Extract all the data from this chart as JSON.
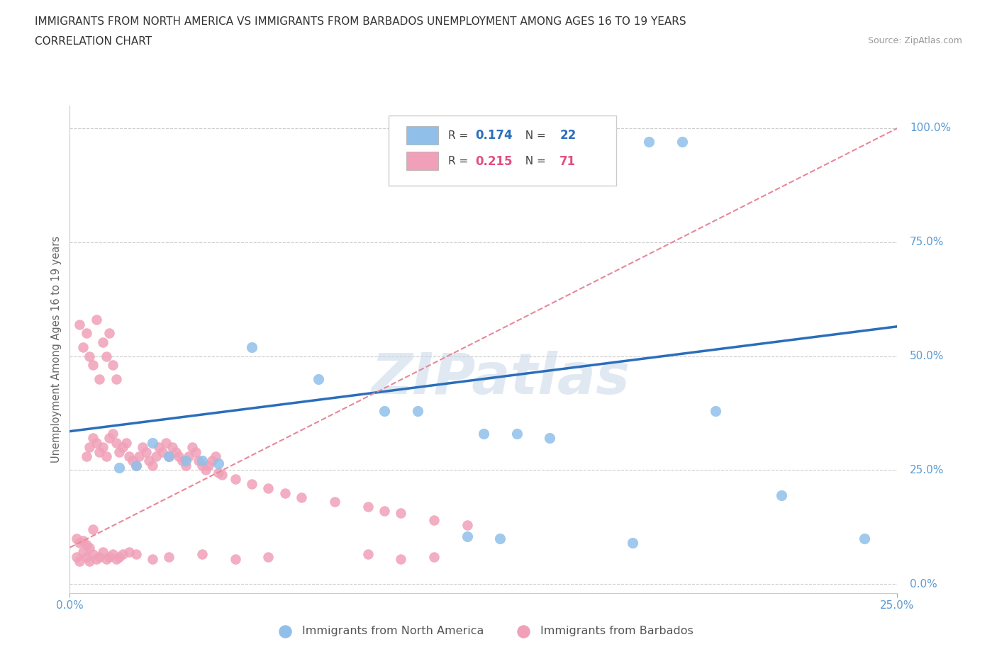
{
  "title_line1": "IMMIGRANTS FROM NORTH AMERICA VS IMMIGRANTS FROM BARBADOS UNEMPLOYMENT AMONG AGES 16 TO 19 YEARS",
  "title_line2": "CORRELATION CHART",
  "source": "Source: ZipAtlas.com",
  "ylabel": "Unemployment Among Ages 16 to 19 years",
  "watermark": "ZIPatlas",
  "blue_R": 0.174,
  "blue_N": 22,
  "pink_R": 0.215,
  "pink_N": 71,
  "blue_color": "#90c0ea",
  "pink_color": "#f0a0b8",
  "blue_line_color": "#2a6ebb",
  "pink_line_color": "#e88898",
  "axis_label_color": "#5b9bd5",
  "xlim": [
    0.0,
    0.25
  ],
  "ylim": [
    -0.02,
    1.05
  ],
  "ytick_vals": [
    0.0,
    0.25,
    0.5,
    0.75,
    1.0
  ],
  "ytick_labels": [
    "0.0%",
    "25.0%",
    "50.0%",
    "75.0%",
    "100.0%"
  ],
  "xtick_vals": [
    0.0,
    0.25
  ],
  "xtick_labels": [
    "0.0%",
    "25.0%"
  ],
  "blue_scatter_x": [
    0.175,
    0.185,
    0.055,
    0.075,
    0.095,
    0.105,
    0.125,
    0.135,
    0.145,
    0.195,
    0.215,
    0.025,
    0.03,
    0.035,
    0.04,
    0.045,
    0.015,
    0.02,
    0.12,
    0.13,
    0.24,
    0.17
  ],
  "blue_scatter_y": [
    0.97,
    0.97,
    0.52,
    0.45,
    0.38,
    0.38,
    0.33,
    0.33,
    0.32,
    0.38,
    0.195,
    0.31,
    0.28,
    0.27,
    0.27,
    0.265,
    0.255,
    0.26,
    0.105,
    0.1,
    0.1,
    0.09
  ],
  "pink_scatter_x": [
    0.005,
    0.006,
    0.007,
    0.008,
    0.009,
    0.01,
    0.011,
    0.012,
    0.013,
    0.014,
    0.015,
    0.016,
    0.017,
    0.018,
    0.019,
    0.02,
    0.021,
    0.022,
    0.023,
    0.024,
    0.025,
    0.026,
    0.027,
    0.028,
    0.029,
    0.03,
    0.031,
    0.032,
    0.033,
    0.034,
    0.035,
    0.036,
    0.037,
    0.038,
    0.039,
    0.04,
    0.041,
    0.042,
    0.043,
    0.044,
    0.003,
    0.004,
    0.005,
    0.006,
    0.007,
    0.008,
    0.009,
    0.01,
    0.011,
    0.012,
    0.013,
    0.014,
    0.045,
    0.046,
    0.05,
    0.055,
    0.06,
    0.065,
    0.07,
    0.08,
    0.09,
    0.095,
    0.1,
    0.11,
    0.12,
    0.002,
    0.003,
    0.004,
    0.005,
    0.006,
    0.007
  ],
  "pink_scatter_y": [
    0.28,
    0.3,
    0.32,
    0.31,
    0.29,
    0.3,
    0.28,
    0.32,
    0.33,
    0.31,
    0.29,
    0.3,
    0.31,
    0.28,
    0.27,
    0.26,
    0.28,
    0.3,
    0.29,
    0.27,
    0.26,
    0.28,
    0.3,
    0.29,
    0.31,
    0.28,
    0.3,
    0.29,
    0.28,
    0.27,
    0.26,
    0.28,
    0.3,
    0.29,
    0.27,
    0.26,
    0.25,
    0.26,
    0.27,
    0.28,
    0.57,
    0.52,
    0.55,
    0.5,
    0.48,
    0.58,
    0.45,
    0.53,
    0.5,
    0.55,
    0.48,
    0.45,
    0.245,
    0.24,
    0.23,
    0.22,
    0.21,
    0.2,
    0.19,
    0.18,
    0.17,
    0.16,
    0.155,
    0.14,
    0.13,
    0.1,
    0.09,
    0.095,
    0.085,
    0.08,
    0.12
  ],
  "pink_low_scatter_x": [
    0.002,
    0.003,
    0.004,
    0.005,
    0.006,
    0.007,
    0.008,
    0.009,
    0.01,
    0.011,
    0.012,
    0.013,
    0.014,
    0.015,
    0.016,
    0.018,
    0.02,
    0.025,
    0.03,
    0.04,
    0.05,
    0.06,
    0.09,
    0.1,
    0.11
  ],
  "pink_low_scatter_y": [
    0.06,
    0.05,
    0.07,
    0.06,
    0.05,
    0.065,
    0.055,
    0.06,
    0.07,
    0.055,
    0.06,
    0.065,
    0.055,
    0.06,
    0.065,
    0.07,
    0.065,
    0.055,
    0.06,
    0.065,
    0.055,
    0.06,
    0.065,
    0.055,
    0.06
  ],
  "blue_line_x": [
    0.0,
    0.25
  ],
  "blue_line_y": [
    0.335,
    0.565
  ],
  "pink_line_x": [
    0.0,
    0.25
  ],
  "pink_line_y": [
    0.08,
    1.0
  ]
}
